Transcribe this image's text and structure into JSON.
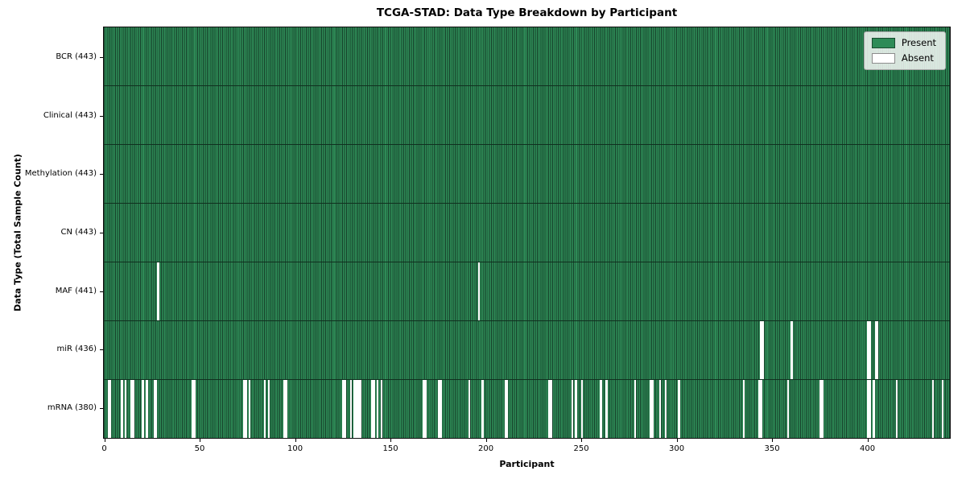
{
  "chart_data": {
    "type": "heatmap",
    "title": "TCGA-STAD: Data Type Breakdown by Participant",
    "xlabel": "Participant",
    "ylabel": "Data Type (Total Sample Count)",
    "xlim": [
      0,
      443
    ],
    "x_ticks": [
      0,
      50,
      100,
      150,
      200,
      250,
      300,
      350,
      400
    ],
    "n_participants": 443,
    "grid": false,
    "colors": {
      "present": "#2e8b57",
      "bar_edge": "#16402a",
      "absent": "#ffffff",
      "spine": "#111111"
    },
    "legend": {
      "position": "upper-right",
      "items": [
        {
          "label": "Present",
          "color": "#2e8b57"
        },
        {
          "label": "Absent",
          "color": "#ffffff"
        }
      ]
    },
    "rows": [
      {
        "label": "BCR (443)",
        "data_type": "BCR",
        "present_count": 443,
        "absent_participants": []
      },
      {
        "label": "Clinical (443)",
        "data_type": "Clinical",
        "present_count": 443,
        "absent_participants": []
      },
      {
        "label": "Methylation (443)",
        "data_type": "Methylation",
        "present_count": 443,
        "absent_participants": []
      },
      {
        "label": "CN (443)",
        "data_type": "CN",
        "present_count": 443,
        "absent_participants": []
      },
      {
        "label": "MAF (441)",
        "data_type": "MAF",
        "present_count": 441,
        "absent_participants": [
          28,
          196
        ]
      },
      {
        "label": "miR (436)",
        "data_type": "miR",
        "present_count": 436,
        "absent_participants": [
          344,
          345,
          360,
          400,
          401,
          404,
          405
        ]
      },
      {
        "label": "mRNA (380)",
        "data_type": "mRNA",
        "present_count": 380,
        "absent_participants": [
          2,
          3,
          9,
          11,
          14,
          15,
          20,
          22,
          26,
          27,
          46,
          47,
          73,
          74,
          76,
          84,
          86,
          94,
          95,
          125,
          126,
          129,
          131,
          132,
          133,
          134,
          140,
          141,
          143,
          145,
          167,
          168,
          175,
          176,
          191,
          198,
          210,
          211,
          233,
          234,
          245,
          247,
          250,
          260,
          263,
          278,
          286,
          287,
          291,
          294,
          301,
          335,
          343,
          344,
          358,
          375,
          376,
          400,
          401,
          403,
          415,
          434,
          439
        ]
      }
    ]
  }
}
